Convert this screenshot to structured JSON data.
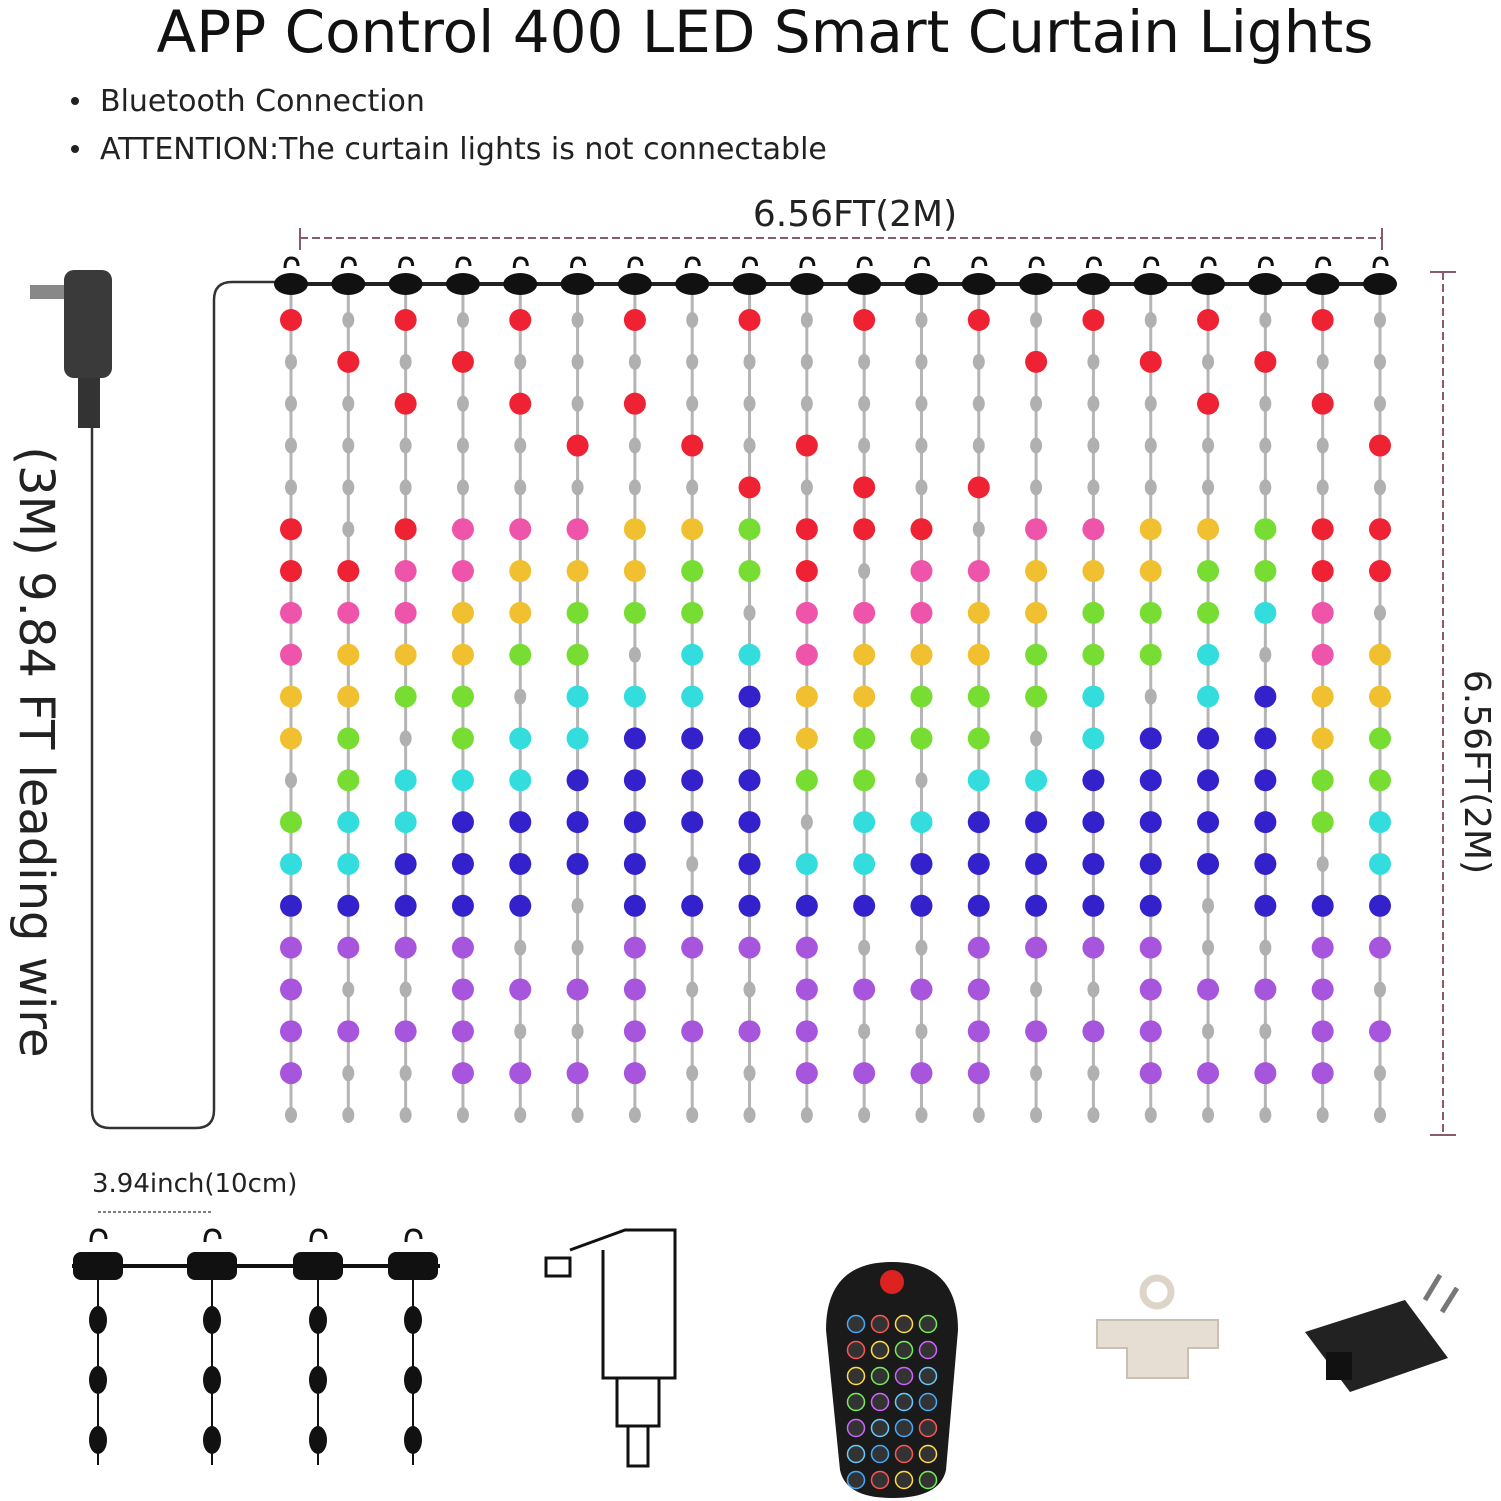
{
  "title": "APP Control 400 LED Smart Curtain Lights",
  "bullets": [
    "Bluetooth Connection",
    "ATTENTION:The curtain lights is not connectable"
  ],
  "dimensions": {
    "width": "6.56FT(2M)",
    "height": "6.56FT(2M)",
    "lead_wire": "(3M) 9.84 FT leading wire",
    "spacing": "3.94inch(10cm)"
  }
}
